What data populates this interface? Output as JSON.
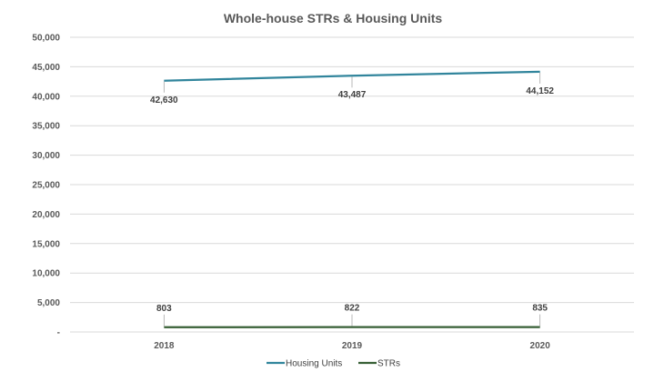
{
  "chart_data": {
    "type": "line",
    "title": "Whole-house STRs & Housing Units",
    "categories": [
      "2018",
      "2019",
      "2020"
    ],
    "ylim": [
      0,
      50000
    ],
    "yticks": [
      0,
      5000,
      10000,
      15000,
      20000,
      25000,
      30000,
      35000,
      40000,
      45000,
      50000
    ],
    "ytick_labels": [
      "-",
      "5,000",
      "10,000",
      "15,000",
      "20,000",
      "25,000",
      "30,000",
      "35,000",
      "40,000",
      "45,000",
      "50,000"
    ],
    "grid": true,
    "legend_position": "bottom",
    "series": [
      {
        "name": "Housing Units",
        "color": "#31859c",
        "values": [
          42630,
          43487,
          44152
        ],
        "labels": [
          "42,630",
          "43,487",
          "44,152"
        ],
        "label_side": "below"
      },
      {
        "name": "STRs",
        "color": "#375f35",
        "values": [
          803,
          822,
          835
        ],
        "labels": [
          "803",
          "822",
          "835"
        ],
        "label_side": "above"
      }
    ]
  }
}
